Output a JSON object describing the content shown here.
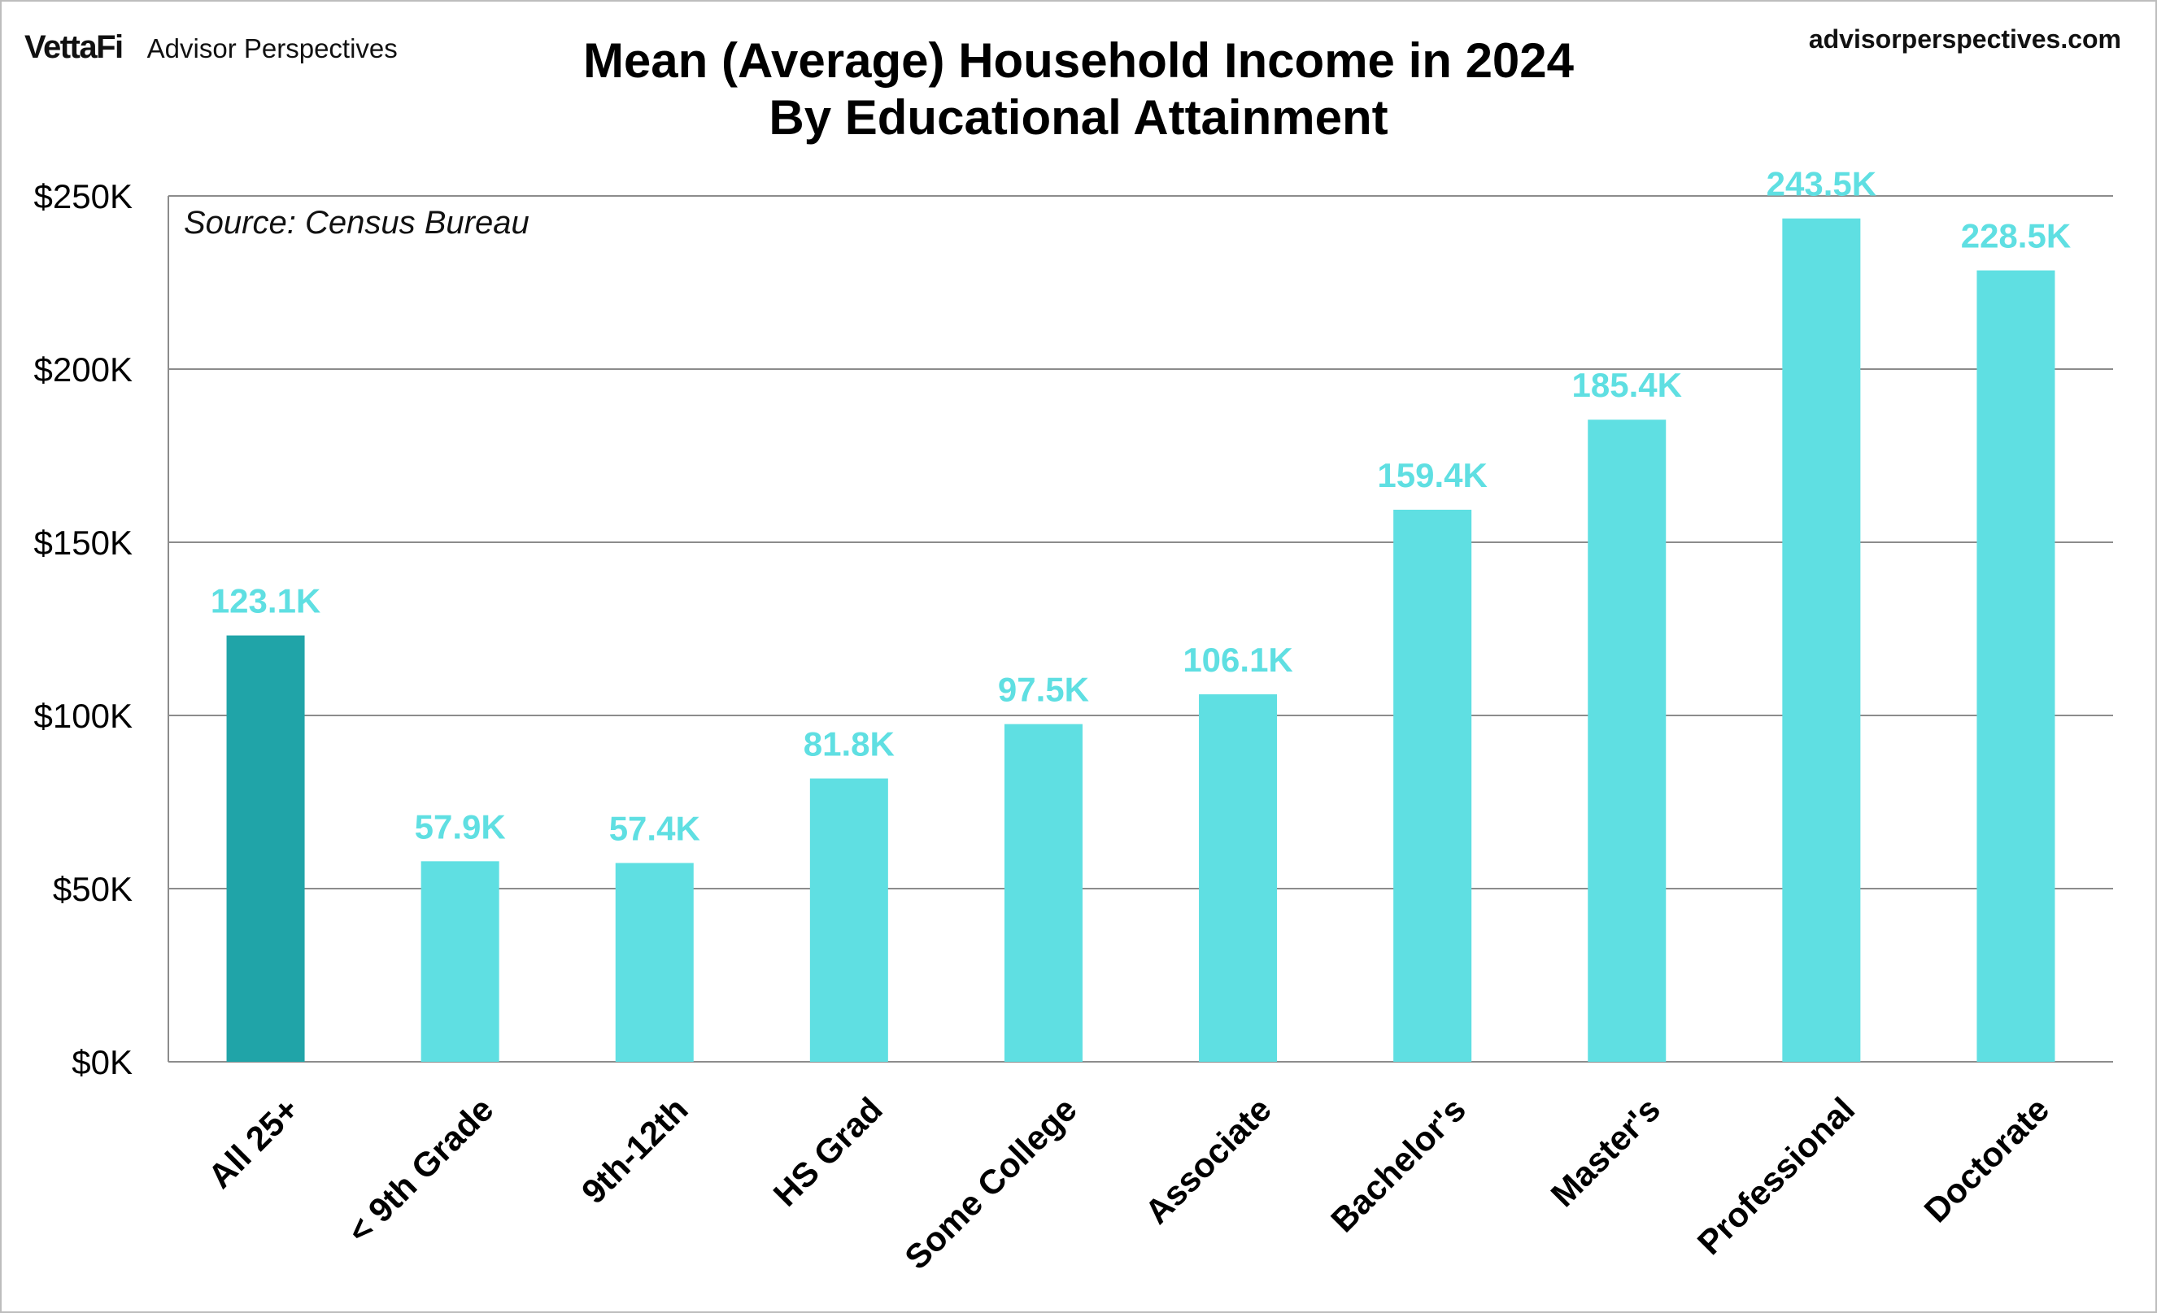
{
  "header": {
    "logo_text": "VettaFi",
    "logo_subtext": "Advisor Perspectives",
    "site_url": "advisorperspectives.com"
  },
  "chart_data": {
    "type": "bar",
    "title": "Mean (Average) Household Income in 2024",
    "subtitle": "By Educational Attainment",
    "source_note": "Source: Census Bureau",
    "categories": [
      "All 25+",
      "< 9th Grade",
      "9th-12th",
      "HS Grad",
      "Some College",
      "Associate",
      "Bachelor's",
      "Master's",
      "Professional",
      "Doctorate"
    ],
    "values": [
      123.1,
      57.9,
      57.4,
      81.8,
      97.5,
      106.1,
      159.4,
      185.4,
      243.5,
      228.5
    ],
    "value_labels": [
      "123.1K",
      "57.9K",
      "57.4K",
      "81.8K",
      "97.5K",
      "106.1K",
      "159.4K",
      "185.4K",
      "243.5K",
      "228.5K"
    ],
    "unit": "thousands of dollars",
    "ylim": [
      0,
      250
    ],
    "y_ticks": [
      0,
      50,
      100,
      150,
      200,
      250
    ],
    "y_tick_labels": [
      "$0K",
      "$50K",
      "$100K",
      "$150K",
      "$200K",
      "$250K"
    ],
    "grid": true,
    "highlight_index": 0,
    "colors": {
      "highlight": "#20a4a8",
      "bar": "#5fdfe2",
      "label": "#5fdfe2",
      "grid": "#8c8c8c",
      "axis_text": "#000000"
    }
  }
}
